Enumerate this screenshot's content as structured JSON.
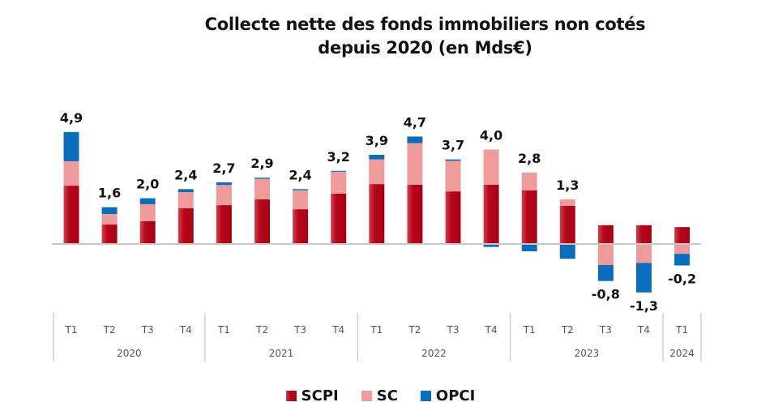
{
  "chart_data": {
    "type": "bar",
    "stacked": true,
    "title": "Collecte nette des fonds immobiliers non cotés depuis 2020 (en Mds€)",
    "title_lines": [
      "Collecte nette des fonds immobiliers non cotés",
      "depuis 2020 (en Mds€)"
    ],
    "xlabel": "",
    "ylabel": "",
    "ylim": [
      -1.5,
      5.2
    ],
    "grid": false,
    "legend_position": "bottom",
    "categories": [
      "T1",
      "T2",
      "T3",
      "T4",
      "T1",
      "T2",
      "T3",
      "T4",
      "T1",
      "T2",
      "T3",
      "T4",
      "T1",
      "T2",
      "T3",
      "T4",
      "T1"
    ],
    "groups": [
      {
        "label": "2020",
        "count": 4
      },
      {
        "label": "2021",
        "count": 4
      },
      {
        "label": "2022",
        "count": 4
      },
      {
        "label": "2023",
        "count": 4
      },
      {
        "label": "2024",
        "count": 1
      }
    ],
    "series": [
      {
        "name": "SCPI",
        "color": "#b5081b",
        "values": [
          2.55,
          0.85,
          1.0,
          1.56,
          1.7,
          1.95,
          1.52,
          2.2,
          2.62,
          2.59,
          2.3,
          2.59,
          2.34,
          1.67,
          0.82,
          0.82,
          0.74
        ]
      },
      {
        "name": "SC",
        "color": "#f09b9b",
        "values": [
          1.07,
          0.46,
          0.74,
          0.71,
          0.88,
          0.9,
          0.83,
          0.96,
          1.08,
          1.82,
          1.34,
          1.54,
          0.78,
          0.28,
          -0.92,
          -0.83,
          -0.43
        ]
      },
      {
        "name": "OPCI",
        "color": "#0a6ebd",
        "values": [
          1.28,
          0.3,
          0.26,
          0.13,
          0.12,
          0.05,
          0.05,
          0.04,
          0.2,
          0.29,
          0.06,
          -0.13,
          -0.32,
          -0.65,
          -0.7,
          -1.29,
          -0.51
        ]
      }
    ],
    "totals": [
      4.9,
      1.6,
      2.0,
      2.4,
      2.7,
      2.9,
      2.4,
      3.2,
      3.9,
      4.7,
      3.7,
      4.0,
      2.8,
      1.3,
      -0.8,
      -1.3,
      -0.2
    ],
    "total_labels": [
      "4,9",
      "1,6",
      "2,0",
      "2,4",
      "2,7",
      "2,9",
      "2,4",
      "3,2",
      "3,9",
      "4,7",
      "3,7",
      "4,0",
      "2,8",
      "1,3",
      "-0,8",
      "-1,3",
      "-0,2"
    ]
  },
  "legend": {
    "items": [
      {
        "label": "SCPI",
        "color": "#b5081b"
      },
      {
        "label": "SC",
        "color": "#f09b9b"
      },
      {
        "label": "OPCI",
        "color": "#0a6ebd"
      }
    ]
  }
}
